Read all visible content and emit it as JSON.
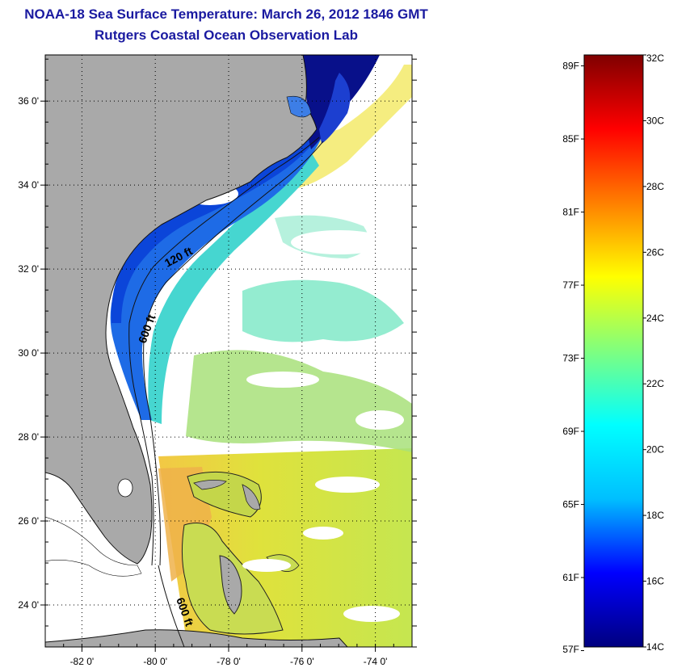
{
  "title": {
    "line1": "NOAA-18 Sea Surface Temperature:  March 26, 2012 1846 GMT",
    "line2": "Rutgers Coastal Ocean Observation Lab"
  },
  "map": {
    "lon_range": [
      -83,
      -73
    ],
    "lat_range": [
      23,
      37.1
    ],
    "lon_ticks": [
      {
        "value": -82,
        "label": "-82 0'"
      },
      {
        "value": -80,
        "label": "-80 0'"
      },
      {
        "value": -78,
        "label": "-78 0'"
      },
      {
        "value": -76,
        "label": "-76 0'"
      },
      {
        "value": -74,
        "label": "-74 0'"
      }
    ],
    "lat_ticks": [
      {
        "value": 36,
        "label": "36 0'"
      },
      {
        "value": 34,
        "label": "34 0'"
      },
      {
        "value": 32,
        "label": "32 0'"
      },
      {
        "value": 30,
        "label": "30 0'"
      },
      {
        "value": 28,
        "label": "28 0'"
      },
      {
        "value": 26,
        "label": "26 0'"
      },
      {
        "value": 24,
        "label": "24 0'"
      }
    ],
    "contour_labels": {
      "c120": "120 ft",
      "c600_north": "600 ft",
      "c600_south": "600 ft"
    },
    "colors": {
      "land": "#a9a9a9",
      "no_data": "#ffffff",
      "frame": "#000000"
    }
  },
  "colorbar": {
    "range_c": [
      14,
      32
    ],
    "celsius_labels": [
      "32C",
      "30C",
      "28C",
      "26C",
      "24C",
      "22C",
      "20C",
      "18C",
      "16C",
      "14C"
    ],
    "fahrenheit_labels": [
      "89F",
      "85F",
      "81F",
      "77F",
      "73F",
      "69F",
      "65F",
      "61F",
      "57F"
    ],
    "stops": [
      "#00007f",
      "#0000ff",
      "#00bfff",
      "#00ffff",
      "#7fff7f",
      "#ffff00",
      "#ff7f00",
      "#ff0000",
      "#7f0000"
    ]
  }
}
